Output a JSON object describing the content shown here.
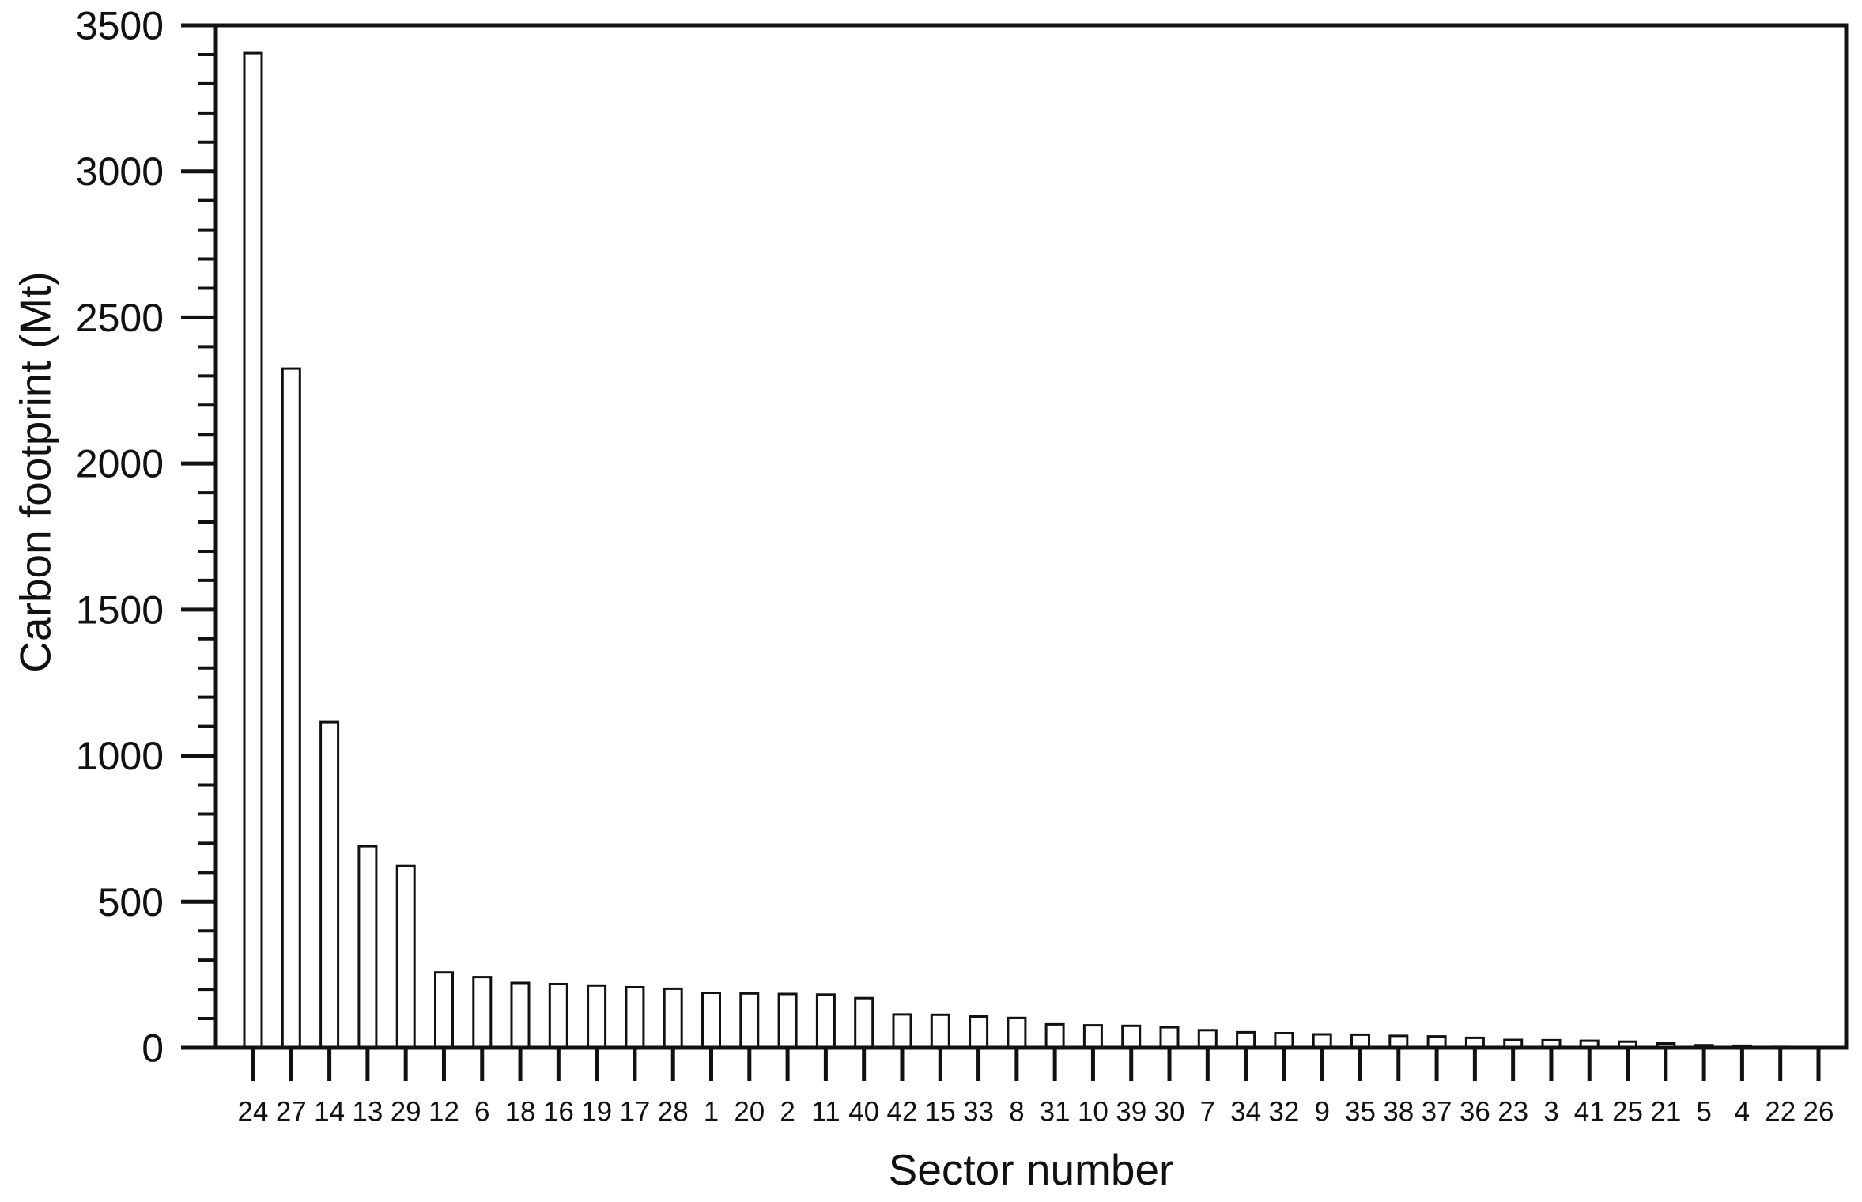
{
  "figure": {
    "background": "#ffffff",
    "ink": "#111111"
  },
  "chart_data": {
    "type": "bar",
    "title": "",
    "xlabel": "Sector number",
    "ylabel": "Carbon footprint (Mt)",
    "categories": [
      "24",
      "27",
      "14",
      "13",
      "29",
      "12",
      "6",
      "18",
      "16",
      "19",
      "17",
      "28",
      "1",
      "20",
      "2",
      "11",
      "40",
      "42",
      "15",
      "33",
      "8",
      "31",
      "10",
      "39",
      "30",
      "7",
      "34",
      "32",
      "9",
      "35",
      "38",
      "37",
      "36",
      "23",
      "3",
      "41",
      "25",
      "21",
      "5",
      "4",
      "22",
      "26"
    ],
    "values": [
      3405,
      2325,
      1115,
      690,
      622,
      258,
      242,
      222,
      218,
      213,
      207,
      202,
      188,
      186,
      184,
      182,
      170,
      114,
      113,
      107,
      102,
      80,
      77,
      75,
      70,
      60,
      53,
      50,
      46,
      45,
      41,
      39,
      34,
      27,
      26,
      24,
      21,
      15,
      9,
      7,
      3,
      1
    ],
    "ylim": [
      0,
      3500
    ],
    "y_major_step": 500,
    "y_minor_step": 100,
    "y_tick_labels": [
      "0",
      "500",
      "1000",
      "1500",
      "2000",
      "2500",
      "3000",
      "3500"
    ],
    "grid": false,
    "legend": null,
    "frame": "box",
    "bar_fill": "#ffffff",
    "bar_outline": "#111111"
  }
}
